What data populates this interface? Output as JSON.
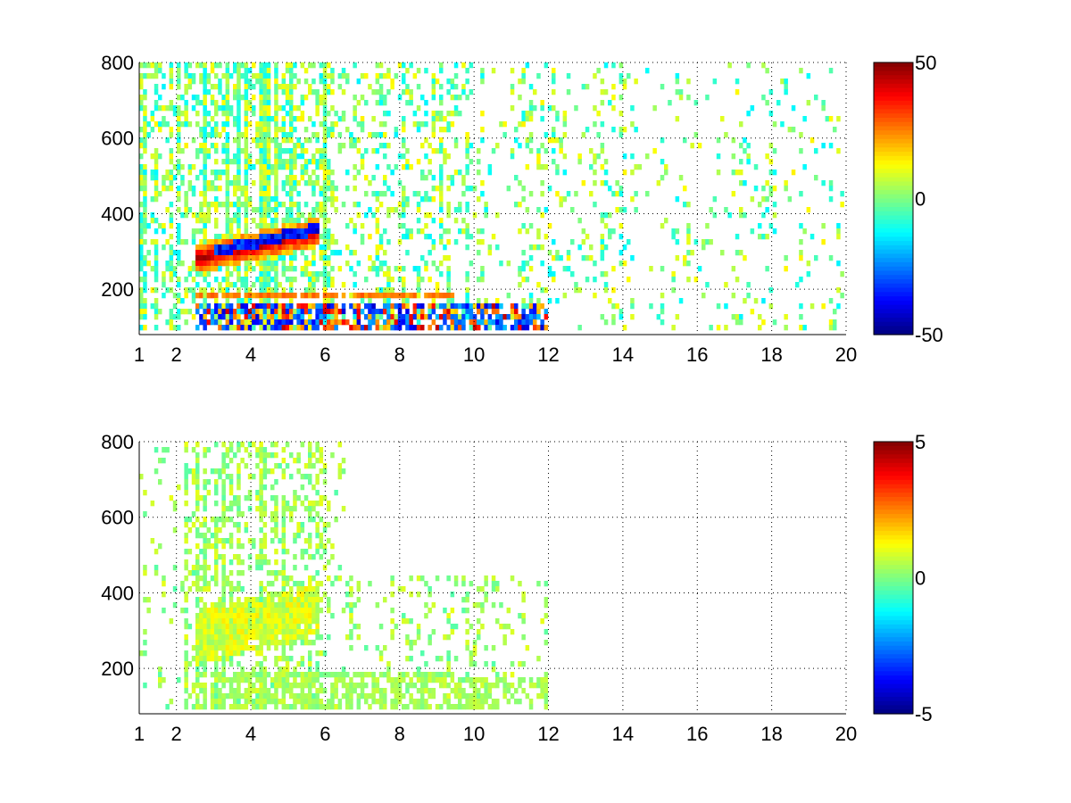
{
  "chart_data": [
    {
      "type": "heatmap",
      "title": "",
      "xlabel": "",
      "ylabel": "",
      "xlim": [
        1,
        20
      ],
      "ylim": [
        80,
        800
      ],
      "x_ticks": [
        1,
        2,
        4,
        6,
        8,
        10,
        12,
        14,
        16,
        18,
        20
      ],
      "x_tick_labels": [
        "1",
        "2",
        "4",
        "6",
        "8",
        "10",
        "12",
        "14",
        "16",
        "18",
        "20"
      ],
      "y_ticks": [
        200,
        400,
        600,
        800
      ],
      "y_tick_labels": [
        "200",
        "400",
        "600",
        "800"
      ],
      "grid": true,
      "grid_style": "dotted",
      "colormap": "jet",
      "colorbar": {
        "min": -50,
        "max": 50,
        "tick_labels": [
          "50",
          "0",
          "-50"
        ]
      },
      "features": [
        {
          "name": "band",
          "x_range": [
            2.5,
            5.8
          ],
          "y_start": [
            2.5,
            280
          ],
          "y_end": [
            5.8,
            350
          ],
          "value": 45
        },
        {
          "name": "band-pair",
          "x_range": [
            3.0,
            5.8
          ],
          "y_start": [
            3.0,
            300
          ],
          "y_end": [
            5.8,
            360
          ],
          "value": -45
        },
        {
          "name": "line",
          "x_range": [
            2.5,
            9.5
          ],
          "y": 180,
          "value": 25
        },
        {
          "name": "floor",
          "x_range": [
            2.5,
            12
          ],
          "y_range": [
            80,
            160
          ],
          "value": -30
        }
      ]
    },
    {
      "type": "heatmap",
      "title": "",
      "xlabel": "",
      "ylabel": "",
      "xlim": [
        1,
        20
      ],
      "ylim": [
        80,
        800
      ],
      "x_ticks": [
        1,
        2,
        4,
        6,
        8,
        10,
        12,
        14,
        16,
        18,
        20
      ],
      "x_tick_labels": [
        "1",
        "2",
        "4",
        "6",
        "8",
        "10",
        "12",
        "14",
        "16",
        "18",
        "20"
      ],
      "y_ticks": [
        200,
        400,
        600,
        800
      ],
      "y_tick_labels": [
        "200",
        "400",
        "600",
        "800"
      ],
      "grid": true,
      "grid_style": "dotted",
      "colormap": "jet",
      "colorbar": {
        "min": -5,
        "max": 5,
        "tick_labels": [
          "5",
          "0",
          "-5"
        ]
      },
      "features": [
        {
          "name": "band",
          "x_range": [
            2.5,
            5.8
          ],
          "y_start": [
            2.5,
            280
          ],
          "y_end": [
            5.8,
            360
          ],
          "value": 1.2
        },
        {
          "name": "line",
          "x_range": [
            2.5,
            9.5
          ],
          "y": 180,
          "value": 0.3
        },
        {
          "name": "floor",
          "x_range": [
            2.5,
            12
          ],
          "y_range": [
            80,
            170
          ],
          "value": 0.4
        }
      ]
    }
  ]
}
